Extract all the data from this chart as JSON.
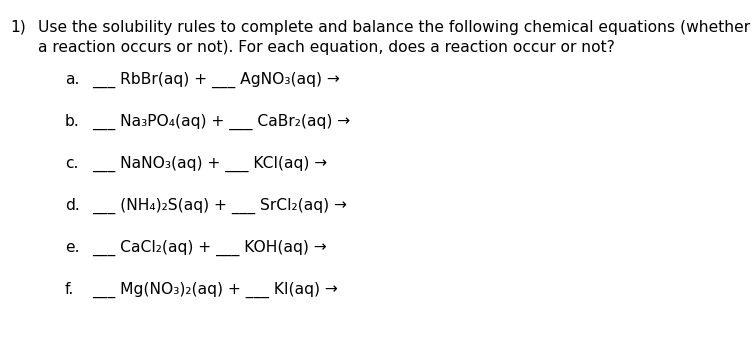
{
  "background_color": "#ffffff",
  "title_number": "1)",
  "title_line1": "Use the solubility rules to complete and balance the following chemical equations (whether",
  "title_line2": "a reaction occurs or not). For each equation, does a reaction occur or not?",
  "title_fontsize": 11.2,
  "items": [
    {
      "label": "a.",
      "equation": "___ RbBr(aq) + ___ AgNO₃(aq) →"
    },
    {
      "label": "b.",
      "equation": "___ Na₃PO₄(aq) + ___ CaBr₂(aq) →"
    },
    {
      "label": "c.",
      "equation": "___ NaNO₃(aq) + ___ KCl(aq) →"
    },
    {
      "label": "d.",
      "equation": "___ (NH₄)₂S(aq) + ___ SrCl₂(aq) →"
    },
    {
      "label": "e.",
      "equation": "___ CaCl₂(aq) + ___ KOH(aq) →"
    },
    {
      "label": "f.",
      "equation": "___ Mg(NO₃)₂(aq) + ___ KI(aq) →"
    }
  ],
  "item_fontsize": 11.2,
  "text_color": "#000000",
  "font_family": "DejaVu Sans"
}
